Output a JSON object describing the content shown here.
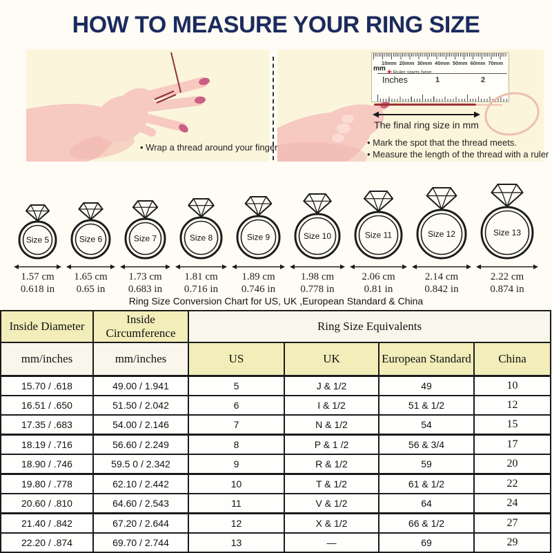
{
  "page": {
    "title": "HOW TO MEASURE YOUR RING SIZE"
  },
  "colors": {
    "title_navy": "#1c2b5e",
    "panel_cream": "#fbf5dc",
    "header_yellow": "#f2edb9",
    "header_cream": "#f9f7ec",
    "thread_red": "#9b3232",
    "hand_pink": "#f6c9c1",
    "nail_pink": "#cb5e85"
  },
  "steps": {
    "left_caption": "• Wrap a thread around your finger",
    "right_bullet_1": "• Mark the spot that the thread meets.",
    "right_bullet_2": "• Measure the length of the thread with a ruler",
    "final_label": "The final ring size in mm"
  },
  "ruler": {
    "unit_mm": "mm",
    "starts_here": "Ruler starts here.",
    "marker": "✚",
    "inches_label": "Inches",
    "mm_labels": [
      "10mm",
      "20mm",
      "30mm",
      "40mm",
      "50mm",
      "60mm",
      "70mm"
    ],
    "inch_labels": [
      "1",
      "2"
    ]
  },
  "rings": [
    {
      "size_label": "Size 5",
      "cm": "1.57 cm",
      "inch": "0.618 in"
    },
    {
      "size_label": "Size 6",
      "cm": "1.65 cm",
      "inch": "0.65 in"
    },
    {
      "size_label": "Size 7",
      "cm": "1.73 cm",
      "inch": "0.683 in"
    },
    {
      "size_label": "Size 8",
      "cm": "1.81 cm",
      "inch": "0.716 in"
    },
    {
      "size_label": "Size 9",
      "cm": "1.89 cm",
      "inch": "0.746 in"
    },
    {
      "size_label": "Size 10",
      "cm": "1.98 cm",
      "inch": "0.778 in"
    },
    {
      "size_label": "Size 11",
      "cm": "2.06 cm",
      "inch": "0.81 in"
    },
    {
      "size_label": "Size 12",
      "cm": "2.14 cm",
      "inch": "0.842 in"
    },
    {
      "size_label": "Size 13",
      "cm": "2.22 cm",
      "inch": "0.874 in"
    }
  ],
  "conversion": {
    "caption": "Ring Size Conversion Chart for US, UK ,European Standard & China",
    "headers": {
      "inside_diameter": "Inside Diameter",
      "inside_circumference": "Inside Circumference",
      "equivalents": "Ring Size Equivalents",
      "unit_diameter": "mm/inches",
      "unit_circumference": "mm/inches",
      "us": "US",
      "uk": "UK",
      "european": "European Standard",
      "china": "China"
    },
    "rows": [
      [
        "15.70 / .618",
        "49.00 / 1.941",
        "5",
        "J & 1/2",
        "49",
        "10"
      ],
      [
        "16.51 / .650",
        "51.50 / 2.042",
        "6",
        "I & 1/2",
        "51 & 1/2",
        "12"
      ],
      [
        "17.35 / .683",
        "54.00 / 2.146",
        "7",
        "N & 1/2",
        "54",
        "15"
      ],
      [
        "18.19 / .716",
        "56.60 / 2.249",
        "8",
        "P & 1 /2",
        "56 & 3/4",
        "17"
      ],
      [
        "18.90 / .746",
        "59.5 0 / 2.342",
        "9",
        "R & 1/2",
        "59",
        "20"
      ],
      [
        "19.80 / .778",
        "62.10 / 2.442",
        "10",
        "T & 1/2",
        "61 & 1/2",
        "22"
      ],
      [
        "20.60 / .810",
        "64.60 / 2.543",
        "11",
        "V & 1/2",
        "64",
        "24"
      ],
      [
        "21.40 / .842",
        "67.20 / 2.644",
        "12",
        "X & 1/2",
        "66 & 1/2",
        "27"
      ],
      [
        "22.20 / .874",
        "69.70 / 2.744",
        "13",
        "—",
        "69",
        "29"
      ]
    ]
  }
}
